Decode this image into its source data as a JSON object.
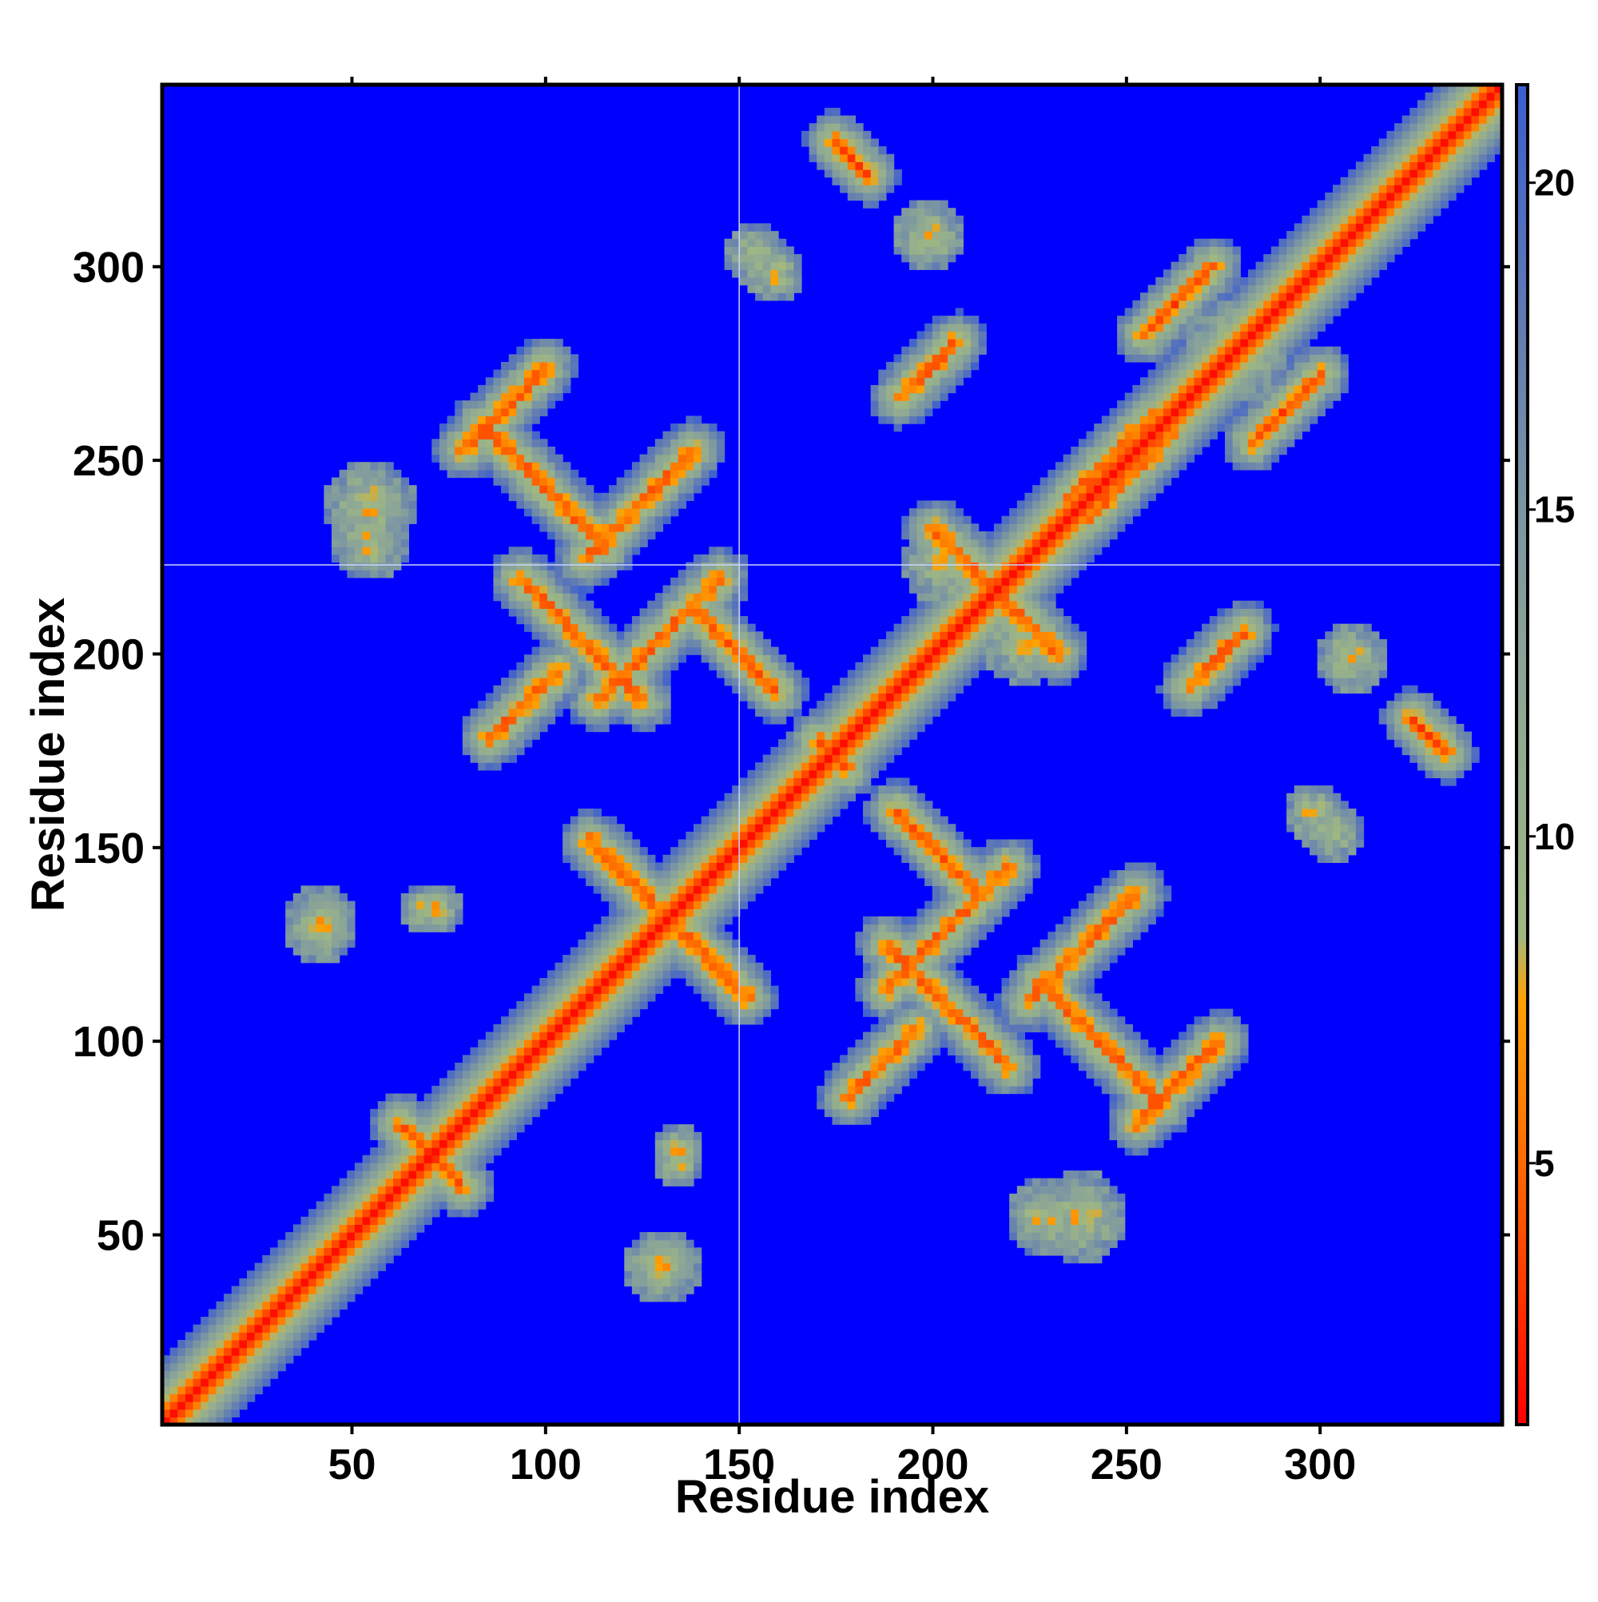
{
  "chart_data": {
    "type": "heatmap",
    "title": "",
    "xlabel": "Residue index",
    "ylabel": "Residue index",
    "xlim": [
      1,
      347
    ],
    "ylim": [
      1,
      347
    ],
    "x_ticks": [
      50,
      100,
      150,
      200,
      250,
      300
    ],
    "y_ticks": [
      50,
      100,
      150,
      200,
      250,
      300
    ],
    "colorbar": {
      "range": [
        1,
        21.5
      ],
      "ticks": [
        5,
        10,
        15,
        20
      ],
      "stops": [
        {
          "value": 1,
          "color": "#ff0000"
        },
        {
          "value": 5,
          "color": "#ff6a00"
        },
        {
          "value": 7.5,
          "color": "#ffa200"
        },
        {
          "value": 8.5,
          "color": "#9fb882"
        },
        {
          "value": 12,
          "color": "#8fa894"
        },
        {
          "value": 15,
          "color": "#7b96a2"
        },
        {
          "value": 18,
          "color": "#607ab4"
        },
        {
          "value": 21.5,
          "color": "#3a5fd0"
        }
      ]
    },
    "background_value": 22,
    "background_color": "#0000ff",
    "crosshair": {
      "x": 150,
      "y": 223
    },
    "contact_features": [
      {
        "kind": "diagonal",
        "from": 1,
        "to": 347
      },
      {
        "kind": "antiparallel",
        "center": [
          70,
          72
        ],
        "length": 20
      },
      {
        "kind": "antiparallel",
        "center": [
          175,
          175
        ],
        "length": 10
      },
      {
        "kind": "antiparallel",
        "center": [
          135,
          130
        ],
        "length": 50
      },
      {
        "kind": "parallel",
        "center": [
          247,
          252
        ],
        "length": 30
      },
      {
        "kind": "parallel",
        "center": [
          293,
          265
        ],
        "length": 25
      },
      {
        "kind": "parallel",
        "center": [
          200,
          275
        ],
        "length": 20
      },
      {
        "kind": "antiparallel",
        "center": [
          210,
          225
        ],
        "length": 24
      },
      {
        "kind": "antiparallel",
        "center": [
          100,
          245
        ],
        "length": 45
      },
      {
        "kind": "antiparallel",
        "center": [
          110,
          205
        ],
        "length": 45
      },
      {
        "kind": "antiparallel",
        "center": [
          150,
          202
        ],
        "length": 30
      },
      {
        "kind": "parallel",
        "center": [
          205,
          130
        ],
        "length": 45
      },
      {
        "kind": "parallel",
        "center": [
          240,
          125
        ],
        "length": 40
      },
      {
        "kind": "parallel",
        "center": [
          265,
          90
        ],
        "length": 30
      },
      {
        "kind": "parallel",
        "center": [
          188,
          95
        ],
        "length": 25
      },
      {
        "kind": "antiparallel",
        "center": [
          330,
          180
        ],
        "length": 12
      },
      {
        "kind": "antiparallel",
        "center": [
          180,
          330
        ],
        "length": 12
      },
      {
        "kind": "patch",
        "center": [
          42,
          132
        ],
        "size": 9
      },
      {
        "kind": "patch",
        "center": [
          72,
          135
        ],
        "size": 7
      },
      {
        "kind": "patch",
        "center": [
          135,
          70
        ],
        "size": 7
      },
      {
        "kind": "patch",
        "center": [
          130,
          42
        ],
        "size": 9
      },
      {
        "kind": "patch",
        "center": [
          240,
          55
        ],
        "size": 12
      },
      {
        "kind": "patch",
        "center": [
          205,
          225
        ],
        "size": 12
      },
      {
        "kind": "patch",
        "center": [
          280,
          280
        ],
        "size": 14
      },
      {
        "kind": "patch",
        "center": [
          310,
          310
        ],
        "size": 8
      },
      {
        "kind": "patch",
        "center": [
          55,
          230
        ],
        "size": 10
      },
      {
        "kind": "patch",
        "center": [
          200,
          310
        ],
        "size": 10
      },
      {
        "kind": "patch",
        "center": [
          305,
          155
        ],
        "size": 8
      },
      {
        "kind": "patch",
        "center": [
          160,
          300
        ],
        "size": 8
      }
    ]
  }
}
